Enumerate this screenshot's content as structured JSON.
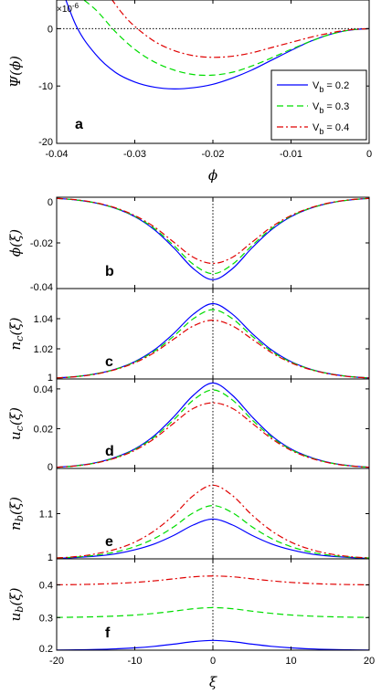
{
  "colors": {
    "blue": "#0000ff",
    "green": "#00dd00",
    "red": "#e00000"
  },
  "legend": [
    "V_b = 0.2",
    "V_b = 0.3",
    "V_b = 0.4"
  ],
  "chart_data": [
    {
      "id": "a",
      "type": "line",
      "panel_label": "a",
      "title": "",
      "xlabel": "ϕ",
      "ylabel": "Ψ(ϕ)",
      "yexponent": "×10-6",
      "xlim": [
        -0.04,
        0
      ],
      "ylim": [
        -20,
        5
      ],
      "xticks": [
        "-0.04",
        "-0.03",
        "-0.02",
        "-0.01",
        "0"
      ],
      "yticks": [
        "-20",
        "-10",
        "0"
      ],
      "xtick_values": [
        -0.04,
        -0.03,
        -0.02,
        -0.01,
        0
      ],
      "ytick_values": [
        -20,
        -10,
        0
      ],
      "legend_position": "top-right",
      "series": [
        {
          "name": "V_b = 0.2",
          "color": "#0000ff",
          "style": "solid",
          "x": [
            -0.04,
            -0.0375,
            -0.035,
            -0.0325,
            -0.03,
            -0.0275,
            -0.025,
            -0.0225,
            -0.02,
            -0.0175,
            -0.015,
            -0.0125,
            -0.01,
            -0.0075,
            -0.005,
            -0.0025,
            0
          ],
          "y": [
            9.5,
            0.5,
            -4.5,
            -7.6,
            -9.3,
            -10.2,
            -10.5,
            -10.3,
            -9.7,
            -8.6,
            -7.2,
            -5.5,
            -3.8,
            -2.2,
            -1.0,
            -0.25,
            0
          ]
        },
        {
          "name": "V_b = 0.3",
          "color": "#00dd00",
          "style": "dashed",
          "x": [
            -0.0375,
            -0.035,
            -0.0325,
            -0.03,
            -0.0275,
            -0.025,
            -0.0225,
            -0.02,
            -0.0175,
            -0.015,
            -0.0125,
            -0.01,
            -0.0075,
            -0.005,
            -0.0025,
            0
          ],
          "y": [
            6.0,
            3.3,
            -0.5,
            -3.6,
            -5.8,
            -7.2,
            -8.0,
            -8.1,
            -7.6,
            -6.5,
            -5.1,
            -3.6,
            -2.2,
            -1.0,
            -0.25,
            0
          ]
        },
        {
          "name": "V_b = 0.4",
          "color": "#e00000",
          "style": "dashdot",
          "x": [
            -0.033,
            -0.0315,
            -0.03,
            -0.0275,
            -0.025,
            -0.0225,
            -0.02,
            -0.0175,
            -0.015,
            -0.0125,
            -0.01,
            -0.0075,
            -0.005,
            -0.0025,
            0
          ],
          "y": [
            5.2,
            2.5,
            0.4,
            -2.2,
            -3.8,
            -4.7,
            -5.0,
            -4.8,
            -4.2,
            -3.3,
            -2.4,
            -1.5,
            -0.75,
            -0.2,
            0
          ]
        }
      ]
    },
    {
      "id": "b",
      "type": "line",
      "panel_label": "b",
      "ylabel": "ϕ(ξ)",
      "ylim": [
        -0.04,
        0
      ],
      "yticks": [
        "-0.04",
        "-0.02",
        "0"
      ],
      "ytick_values": [
        -0.04,
        -0.02,
        0
      ],
      "x": [
        -20,
        -17.5,
        -15,
        -12.5,
        -10,
        -7.5,
        -5,
        -2.5,
        0,
        2.5,
        5,
        7.5,
        10,
        12.5,
        15,
        17.5,
        20
      ],
      "series": [
        {
          "name": "V_b = 0.2",
          "values": [
            -0.0005,
            -0.0012,
            -0.0025,
            -0.0048,
            -0.0085,
            -0.0142,
            -0.0222,
            -0.0313,
            -0.0361,
            -0.0313,
            -0.0222,
            -0.0142,
            -0.0085,
            -0.0048,
            -0.0025,
            -0.0012,
            -0.0005
          ]
        },
        {
          "name": "V_b = 0.3",
          "values": [
            -0.0005,
            -0.0012,
            -0.0025,
            -0.0048,
            -0.0083,
            -0.0137,
            -0.0212,
            -0.0294,
            -0.0335,
            -0.0294,
            -0.0212,
            -0.0137,
            -0.0083,
            -0.0048,
            -0.0025,
            -0.0012,
            -0.0005
          ]
        },
        {
          "name": "V_b = 0.4",
          "values": [
            -0.0005,
            -0.0011,
            -0.0024,
            -0.0046,
            -0.008,
            -0.013,
            -0.0197,
            -0.0263,
            -0.029,
            -0.0263,
            -0.0197,
            -0.013,
            -0.008,
            -0.0046,
            -0.0024,
            -0.0011,
            -0.0005
          ]
        }
      ]
    },
    {
      "id": "c",
      "type": "line",
      "panel_label": "c",
      "ylabel": "n_c(ξ)",
      "ylim": [
        1,
        1.06
      ],
      "yticks": [
        "1",
        "1.02",
        "1.04"
      ],
      "ytick_values": [
        1,
        1.02,
        1.04
      ],
      "x": [
        -20,
        -17.5,
        -15,
        -12.5,
        -10,
        -7.5,
        -5,
        -2.5,
        0,
        2.5,
        5,
        7.5,
        10,
        12.5,
        15,
        17.5,
        20
      ],
      "series": [
        {
          "name": "V_b = 0.2",
          "values": [
            1.0007,
            1.0016,
            1.0034,
            1.0065,
            1.0115,
            1.0193,
            1.0303,
            1.043,
            1.05,
            1.043,
            1.0303,
            1.0193,
            1.0115,
            1.0065,
            1.0034,
            1.0016,
            1.0007
          ]
        },
        {
          "name": "V_b = 0.3",
          "values": [
            1.0007,
            1.0016,
            1.0034,
            1.0064,
            1.0112,
            1.0184,
            1.0285,
            1.04,
            1.046,
            1.04,
            1.0285,
            1.0184,
            1.0112,
            1.0064,
            1.0034,
            1.0016,
            1.0007
          ]
        },
        {
          "name": "V_b = 0.4",
          "values": [
            1.0007,
            1.0015,
            1.0032,
            1.0062,
            1.0107,
            1.0175,
            1.0265,
            1.0352,
            1.039,
            1.0352,
            1.0265,
            1.0175,
            1.0107,
            1.0062,
            1.0032,
            1.0015,
            1.0007
          ]
        }
      ]
    },
    {
      "id": "d",
      "type": "line",
      "panel_label": "d",
      "ylabel": "u_c(ξ)",
      "ylim": [
        0,
        0.045
      ],
      "yticks": [
        "0",
        "0.02",
        "0.04"
      ],
      "ytick_values": [
        0,
        0.02,
        0.04
      ],
      "x": [
        -20,
        -17.5,
        -15,
        -12.5,
        -10,
        -7.5,
        -5,
        -2.5,
        0,
        2.5,
        5,
        7.5,
        10,
        12.5,
        15,
        17.5,
        20
      ],
      "series": [
        {
          "name": "V_b = 0.2",
          "values": [
            0.0006,
            0.0014,
            0.0029,
            0.0056,
            0.0098,
            0.0165,
            0.026,
            0.0368,
            0.043,
            0.0368,
            0.026,
            0.0165,
            0.0098,
            0.0056,
            0.0029,
            0.0014,
            0.0006
          ]
        },
        {
          "name": "V_b = 0.3",
          "values": [
            0.0006,
            0.0013,
            0.0028,
            0.0054,
            0.0095,
            0.0158,
            0.0245,
            0.0344,
            0.0395,
            0.0344,
            0.0245,
            0.0158,
            0.0095,
            0.0054,
            0.0028,
            0.0013,
            0.0006
          ]
        },
        {
          "name": "V_b = 0.4",
          "values": [
            0.0006,
            0.0013,
            0.0027,
            0.0052,
            0.0091,
            0.015,
            0.0228,
            0.0302,
            0.033,
            0.0302,
            0.0228,
            0.015,
            0.0091,
            0.0052,
            0.0027,
            0.0013,
            0.0006
          ]
        }
      ]
    },
    {
      "id": "e",
      "type": "line",
      "panel_label": "e",
      "ylabel": "n_b(ξ)",
      "ylim": [
        1,
        1.2
      ],
      "yticks": [
        "1",
        "1.1"
      ],
      "ytick_values": [
        1,
        1.1
      ],
      "x": [
        -20,
        -17.5,
        -15,
        -12.5,
        -10,
        -7.5,
        -5,
        -2.5,
        0,
        2.5,
        5,
        7.5,
        10,
        12.5,
        15,
        17.5,
        20
      ],
      "series": [
        {
          "name": "V_b = 0.2",
          "values": [
            1.001,
            1.003,
            1.006,
            1.011,
            1.02,
            1.033,
            1.052,
            1.075,
            1.088,
            1.075,
            1.052,
            1.033,
            1.02,
            1.011,
            1.006,
            1.003,
            1.001
          ]
        },
        {
          "name": "V_b = 0.3",
          "values": [
            1.002,
            1.004,
            1.008,
            1.015,
            1.027,
            1.045,
            1.071,
            1.102,
            1.118,
            1.102,
            1.071,
            1.045,
            1.027,
            1.015,
            1.008,
            1.004,
            1.002
          ]
        },
        {
          "name": "V_b = 0.4",
          "values": [
            1.002,
            1.005,
            1.011,
            1.021,
            1.037,
            1.062,
            1.097,
            1.14,
            1.163,
            1.14,
            1.097,
            1.062,
            1.037,
            1.021,
            1.011,
            1.005,
            1.002
          ]
        }
      ]
    },
    {
      "id": "f",
      "type": "line",
      "panel_label": "f",
      "ylabel": "u_b(ξ)",
      "ylim": [
        0.2,
        0.48
      ],
      "yticks": [
        "0.2",
        "0.3",
        "0.4"
      ],
      "ytick_values": [
        0.2,
        0.3,
        0.4
      ],
      "xlabel": "ξ",
      "xlim": [
        -20,
        20
      ],
      "xticks": [
        "-20",
        "-10",
        "0",
        "10",
        "20"
      ],
      "xtick_values": [
        -20,
        -10,
        0,
        10,
        20
      ],
      "x": [
        -20,
        -17.5,
        -15,
        -12.5,
        -10,
        -7.5,
        -5,
        -2.5,
        0,
        2.5,
        5,
        7.5,
        10,
        12.5,
        15,
        17.5,
        20
      ],
      "series": [
        {
          "name": "V_b = 0.2",
          "values": [
            0.2005,
            0.201,
            0.2022,
            0.204,
            0.207,
            0.2118,
            0.2185,
            0.2262,
            0.23,
            0.2262,
            0.2185,
            0.2118,
            0.207,
            0.204,
            0.2022,
            0.201,
            0.2005
          ]
        },
        {
          "name": "V_b = 0.3",
          "values": [
            0.3005,
            0.3012,
            0.3025,
            0.3045,
            0.3078,
            0.3128,
            0.3196,
            0.327,
            0.3305,
            0.327,
            0.3196,
            0.3128,
            0.3078,
            0.3045,
            0.3025,
            0.3012,
            0.3005
          ]
        },
        {
          "name": "V_b = 0.4",
          "values": [
            0.4005,
            0.4011,
            0.4024,
            0.4045,
            0.4078,
            0.4126,
            0.4188,
            0.425,
            0.4275,
            0.425,
            0.4188,
            0.4126,
            0.4078,
            0.4045,
            0.4024,
            0.4011,
            0.4005
          ]
        }
      ]
    }
  ]
}
